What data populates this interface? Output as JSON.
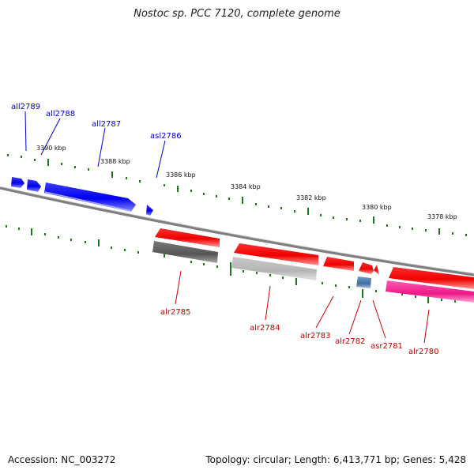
{
  "title": "Nostoc sp. PCC 7120, complete genome",
  "footer": {
    "accession": "Accession: NC_003272",
    "summary": "Topology: circular; Length: 6,413,771 bp; Genes: 5,428"
  },
  "colors": {
    "minus_strand": "#0000ff",
    "plus_strand": "#ff0000",
    "tick": "#1a7a1a",
    "backbone": "#808080"
  },
  "kbp_labels": [
    "3390 kbp",
    "3388 kbp",
    "3386 kbp",
    "3384 kbp",
    "3382 kbp",
    "3380 kbp",
    "3378 kbp"
  ],
  "genes_minus": [
    "all2789",
    "all2788",
    "all2787",
    "asl2786"
  ],
  "genes_plus": [
    "alr2785",
    "alr2784",
    "alr2783",
    "alr2782",
    "asr2781",
    "alr2780"
  ]
}
